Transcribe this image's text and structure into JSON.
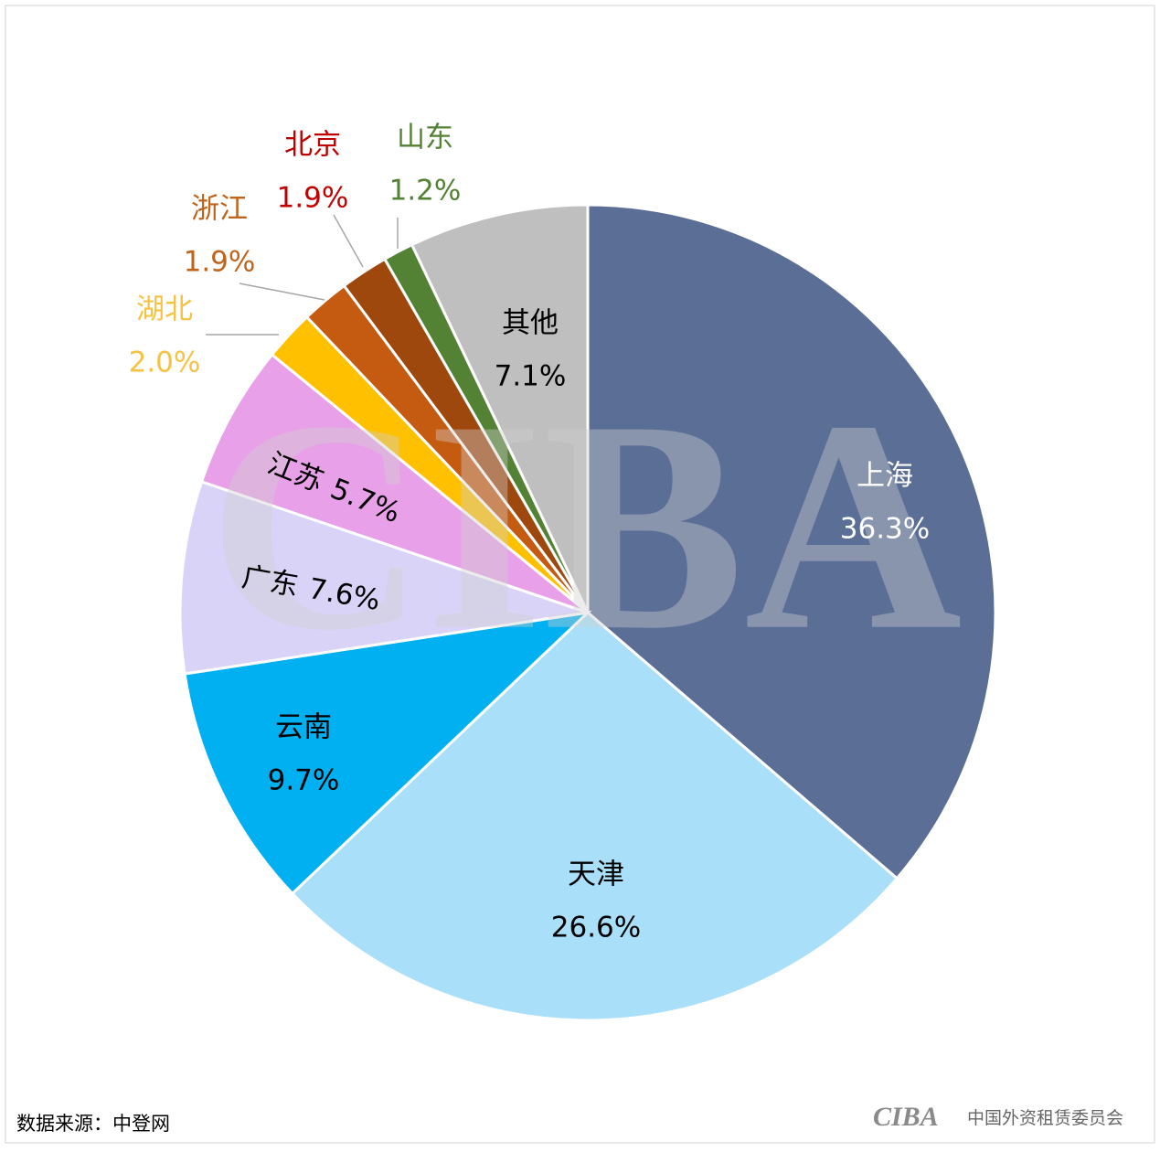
{
  "chart_data": {
    "type": "pie",
    "categories": [
      "上海",
      "天津",
      "云南",
      "广东",
      "江苏",
      "湖北",
      "浙江",
      "北京",
      "山东",
      "其他"
    ],
    "values": [
      36.3,
      26.6,
      9.7,
      7.6,
      5.7,
      2.0,
      1.9,
      1.9,
      1.2,
      7.1
    ],
    "value_labels": [
      "36.3%",
      "26.6%",
      "9.7%",
      "7.6%",
      "5.7%",
      "2.0%",
      "1.9%",
      "1.9%",
      "1.2%",
      "7.1%"
    ],
    "colors": [
      "#5b6e96",
      "#a9dff8",
      "#00b0f0",
      "#d9d4f7",
      "#e8a0e8",
      "#ffc000",
      "#c55a11",
      "#9e480e",
      "#548235",
      "#bfbfbf"
    ],
    "label_colors": [
      "#ffffff",
      "#000000",
      "#000000",
      "#000000",
      "#000000",
      "#f5c242",
      "#c0641c",
      "#c00000",
      "#548235",
      "#000000"
    ],
    "source": "数据来源：中登网",
    "watermark": "CIBA",
    "logo": "CIBA",
    "logo_text": "中国外资租赁委员会"
  }
}
